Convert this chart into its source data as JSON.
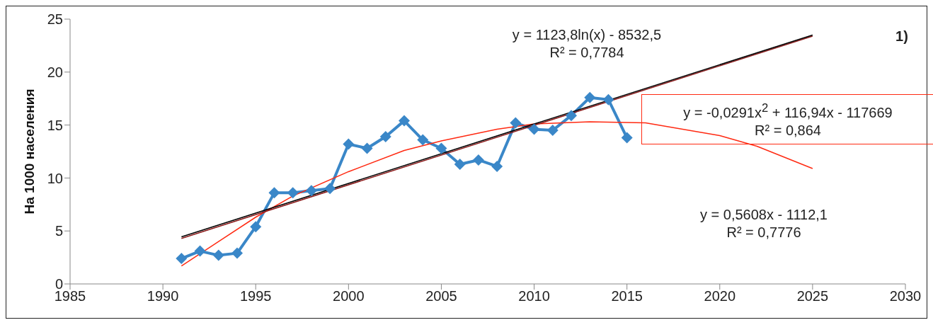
{
  "chart_data": {
    "type": "line",
    "ylabel": "На 1000 населения",
    "xlim": [
      1985,
      2030
    ],
    "xticks": [
      1985,
      1990,
      1995,
      2000,
      2005,
      2010,
      2015,
      2020,
      2025,
      2030
    ],
    "ylim": [
      0,
      25
    ],
    "yticks": [
      0,
      5,
      10,
      15,
      20,
      25
    ],
    "x": [
      1991,
      1992,
      1993,
      1994,
      1995,
      1996,
      1997,
      1998,
      1999,
      2000,
      2001,
      2002,
      2003,
      2004,
      2005,
      2006,
      2007,
      2008,
      2009,
      2010,
      2011,
      2012,
      2013,
      2014,
      2015
    ],
    "series": [
      {
        "color": "#3a87c8",
        "marker": "diamond",
        "values": [
          2.4,
          3.1,
          2.7,
          2.9,
          5.4,
          8.6,
          8.6,
          8.8,
          9.0,
          13.2,
          12.8,
          13.9,
          15.4,
          13.6,
          12.8,
          11.3,
          11.7,
          11.1,
          15.2,
          14.6,
          14.5,
          15.9,
          17.6,
          17.4,
          13.8
        ]
      },
      {
        "type": "line",
        "color": "#ff2a12",
        "marker": "none",
        "x": [
          1991,
          1993,
          1995,
          1997,
          2000,
          2003,
          2005,
          2008,
          2010,
          2013,
          2016,
          2020,
          2022,
          2025
        ],
        "values": [
          1.7,
          4.0,
          6.3,
          8.3,
          10.6,
          12.6,
          13.5,
          14.6,
          15.1,
          15.3,
          15.2,
          14.0,
          13.0,
          10.9
        ]
      },
      {
        "type": "line",
        "color": "#8b1a1a",
        "marker": "none",
        "x": [
          1991,
          2025
        ],
        "values": [
          4.3,
          23.4
        ]
      },
      {
        "type": "line",
        "color": "#000000",
        "marker": "none",
        "x": [
          1991,
          2025
        ],
        "values": [
          4.45,
          23.5
        ]
      }
    ],
    "annotations": [
      "y = 1123,8ln(x)  - 8532,5\nR² = 0,7784",
      "1)",
      "y = -0,0291x$^{2}$ + 116,94x - 117669\nR² = 0,864",
      "y = 0,5608x - 1112,1\nR² = 0,7776"
    ]
  }
}
